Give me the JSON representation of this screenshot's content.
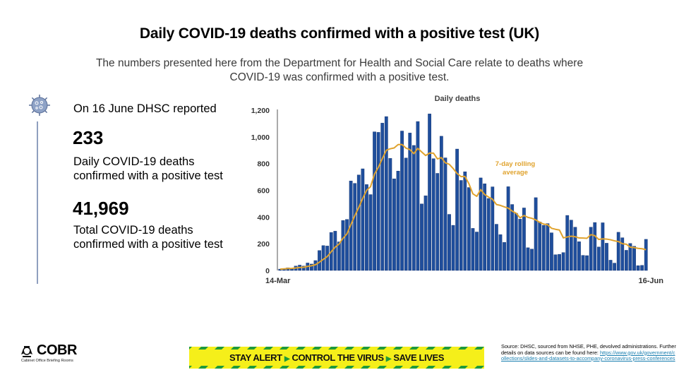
{
  "header": {
    "title": "Daily COVID-19 deaths confirmed with a positive test (UK)",
    "subtitle": "The numbers presented here from the Department for Health and Social Care relate to deaths where COVID-19 was confirmed with a positive test."
  },
  "summary": {
    "reported_line": "On 16 June DHSC reported",
    "daily_value": "233",
    "daily_desc": "Daily COVID-19 deaths confirmed with a positive test",
    "total_value": "41,969",
    "total_desc": "Total COVID-19 deaths confirmed with a positive test"
  },
  "colors": {
    "bar": "#1f4e9c",
    "bar_edge": "#0f2f6b",
    "rolling_line": "#e0a32e",
    "rolling_label": "#e0a32e",
    "banner_yellow": "#f5ef1a",
    "banner_green": "#1e9a3a"
  },
  "chart_data": {
    "type": "bar",
    "title": "Daily deaths",
    "xlabel": "",
    "ylabel": "",
    "x_start_label": "14-Mar",
    "x_end_label": "16-Jun",
    "ylim": [
      0,
      1200
    ],
    "y_ticks": [
      0,
      200,
      400,
      600,
      800,
      1000,
      1200
    ],
    "y_tick_labels": [
      "0",
      "200",
      "400",
      "600",
      "800",
      "1,000",
      "1,200"
    ],
    "grid": false,
    "annotation": "7-day rolling average",
    "series": [
      {
        "name": "Daily deaths",
        "type": "bar",
        "start_date": "14-Mar",
        "values": [
          10,
          14,
          20,
          16,
          33,
          40,
          33,
          56,
          48,
          74,
          149,
          186,
          183,
          284,
          294,
          214,
          374,
          382,
          670,
          652,
          715,
          761,
          643,
          568,
          1038,
          1034,
          1103,
          1152,
          839,
          686,
          744,
          1044,
          842,
          1029,
          936,
          1115,
          498,
          559,
          1172,
          837,
          727,
          1005,
          843,
          420,
          338,
          909,
          674,
          739,
          621,
          315,
          288,
          693,
          649,
          539,
          626,
          346,
          268,
          210,
          627,
          494,
          428,
          384,
          468,
          170,
          160,
          545,
          363,
          338,
          351,
          282,
          118,
          121,
          134,
          412,
          377,
          324,
          215,
          113,
          111,
          324,
          359,
          176,
          357,
          204,
          77,
          55,
          286,
          245,
          151,
          202,
          181,
          36,
          38,
          233
        ]
      },
      {
        "name": "7-day rolling average",
        "type": "line",
        "derived_from": "Daily deaths"
      }
    ]
  },
  "footer": {
    "logo_text": "COBR",
    "logo_sub": "Cabinet Office Briefing Rooms",
    "banner_parts": [
      "STAY ALERT",
      "CONTROL THE VIRUS",
      "SAVE LIVES"
    ],
    "source_text": "Source: DHSC, sourced from NHSE, PHE, devolved administrations. Further details on data sources can be found here:",
    "source_link": "https://www.gov.uk/government/collections/slides-and-datasets-to-accompany-coronavirus-press-conferences"
  }
}
